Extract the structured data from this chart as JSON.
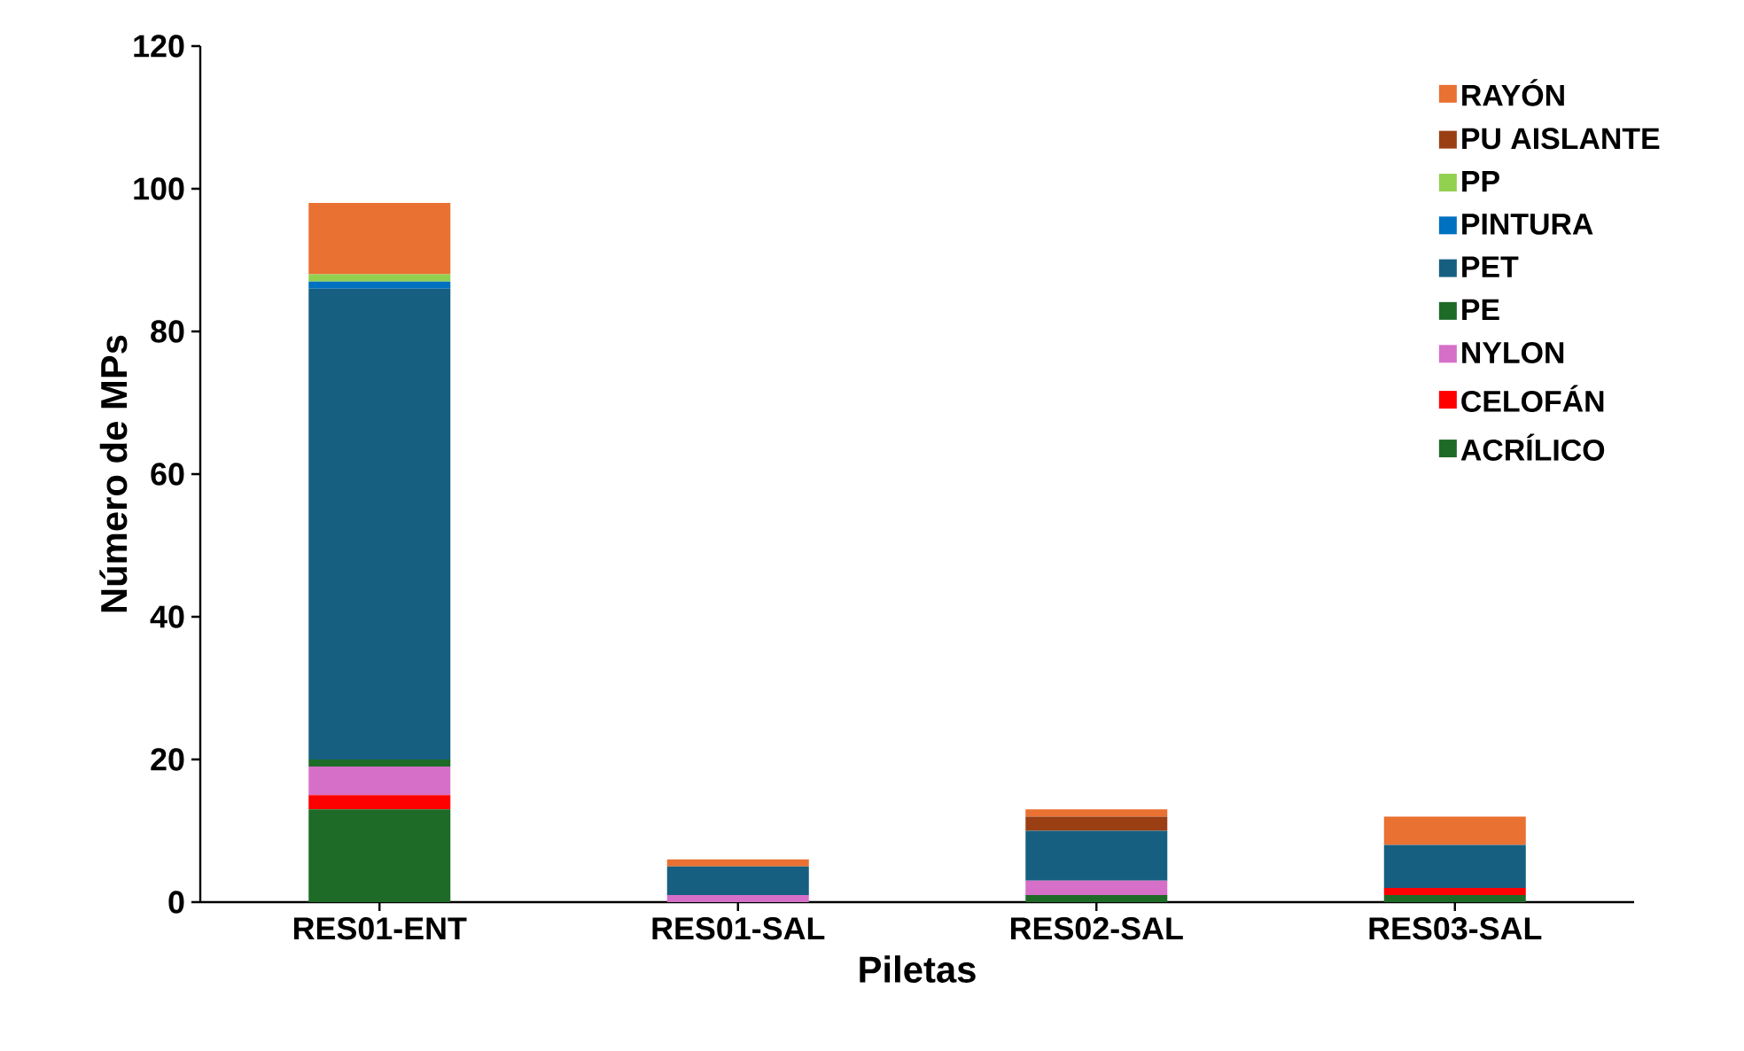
{
  "chart_data": {
    "type": "bar",
    "stacked": true,
    "xlabel": "Piletas",
    "ylabel": "Número de MPs",
    "categories": [
      "RES01-ENT",
      "RES01-SAL",
      "RES02-SAL",
      "RES03-SAL"
    ],
    "ylim": [
      0,
      120
    ],
    "yticks": [
      0,
      20,
      40,
      60,
      80,
      100,
      120
    ],
    "legend": "top right",
    "grid": false,
    "series": [
      {
        "name": "ACRÍLICO",
        "color": "#1e6b27",
        "values": [
          13,
          0,
          1,
          1
        ]
      },
      {
        "name": "CELOFÁN",
        "color": "#ff0000",
        "values": [
          2,
          0,
          0,
          1
        ]
      },
      {
        "name": "NYLON",
        "color": "#d66fc8",
        "values": [
          4,
          1,
          2,
          0
        ]
      },
      {
        "name": "PE",
        "color": "#1e6b27",
        "values": [
          1,
          0,
          0,
          0
        ]
      },
      {
        "name": "PET",
        "color": "#175f81",
        "values": [
          66,
          4,
          7,
          6
        ]
      },
      {
        "name": "PINTURA",
        "color": "#0070c0",
        "values": [
          1,
          0,
          0,
          0
        ]
      },
      {
        "name": "PP",
        "color": "#92d050",
        "values": [
          1,
          0,
          0,
          0
        ]
      },
      {
        "name": "PU AISLANTE",
        "color": "#9a3f14",
        "values": [
          0,
          0,
          2,
          0
        ]
      },
      {
        "name": "RAYÓN",
        "color": "#e97132",
        "values": [
          10,
          1,
          1,
          4
        ]
      }
    ]
  }
}
